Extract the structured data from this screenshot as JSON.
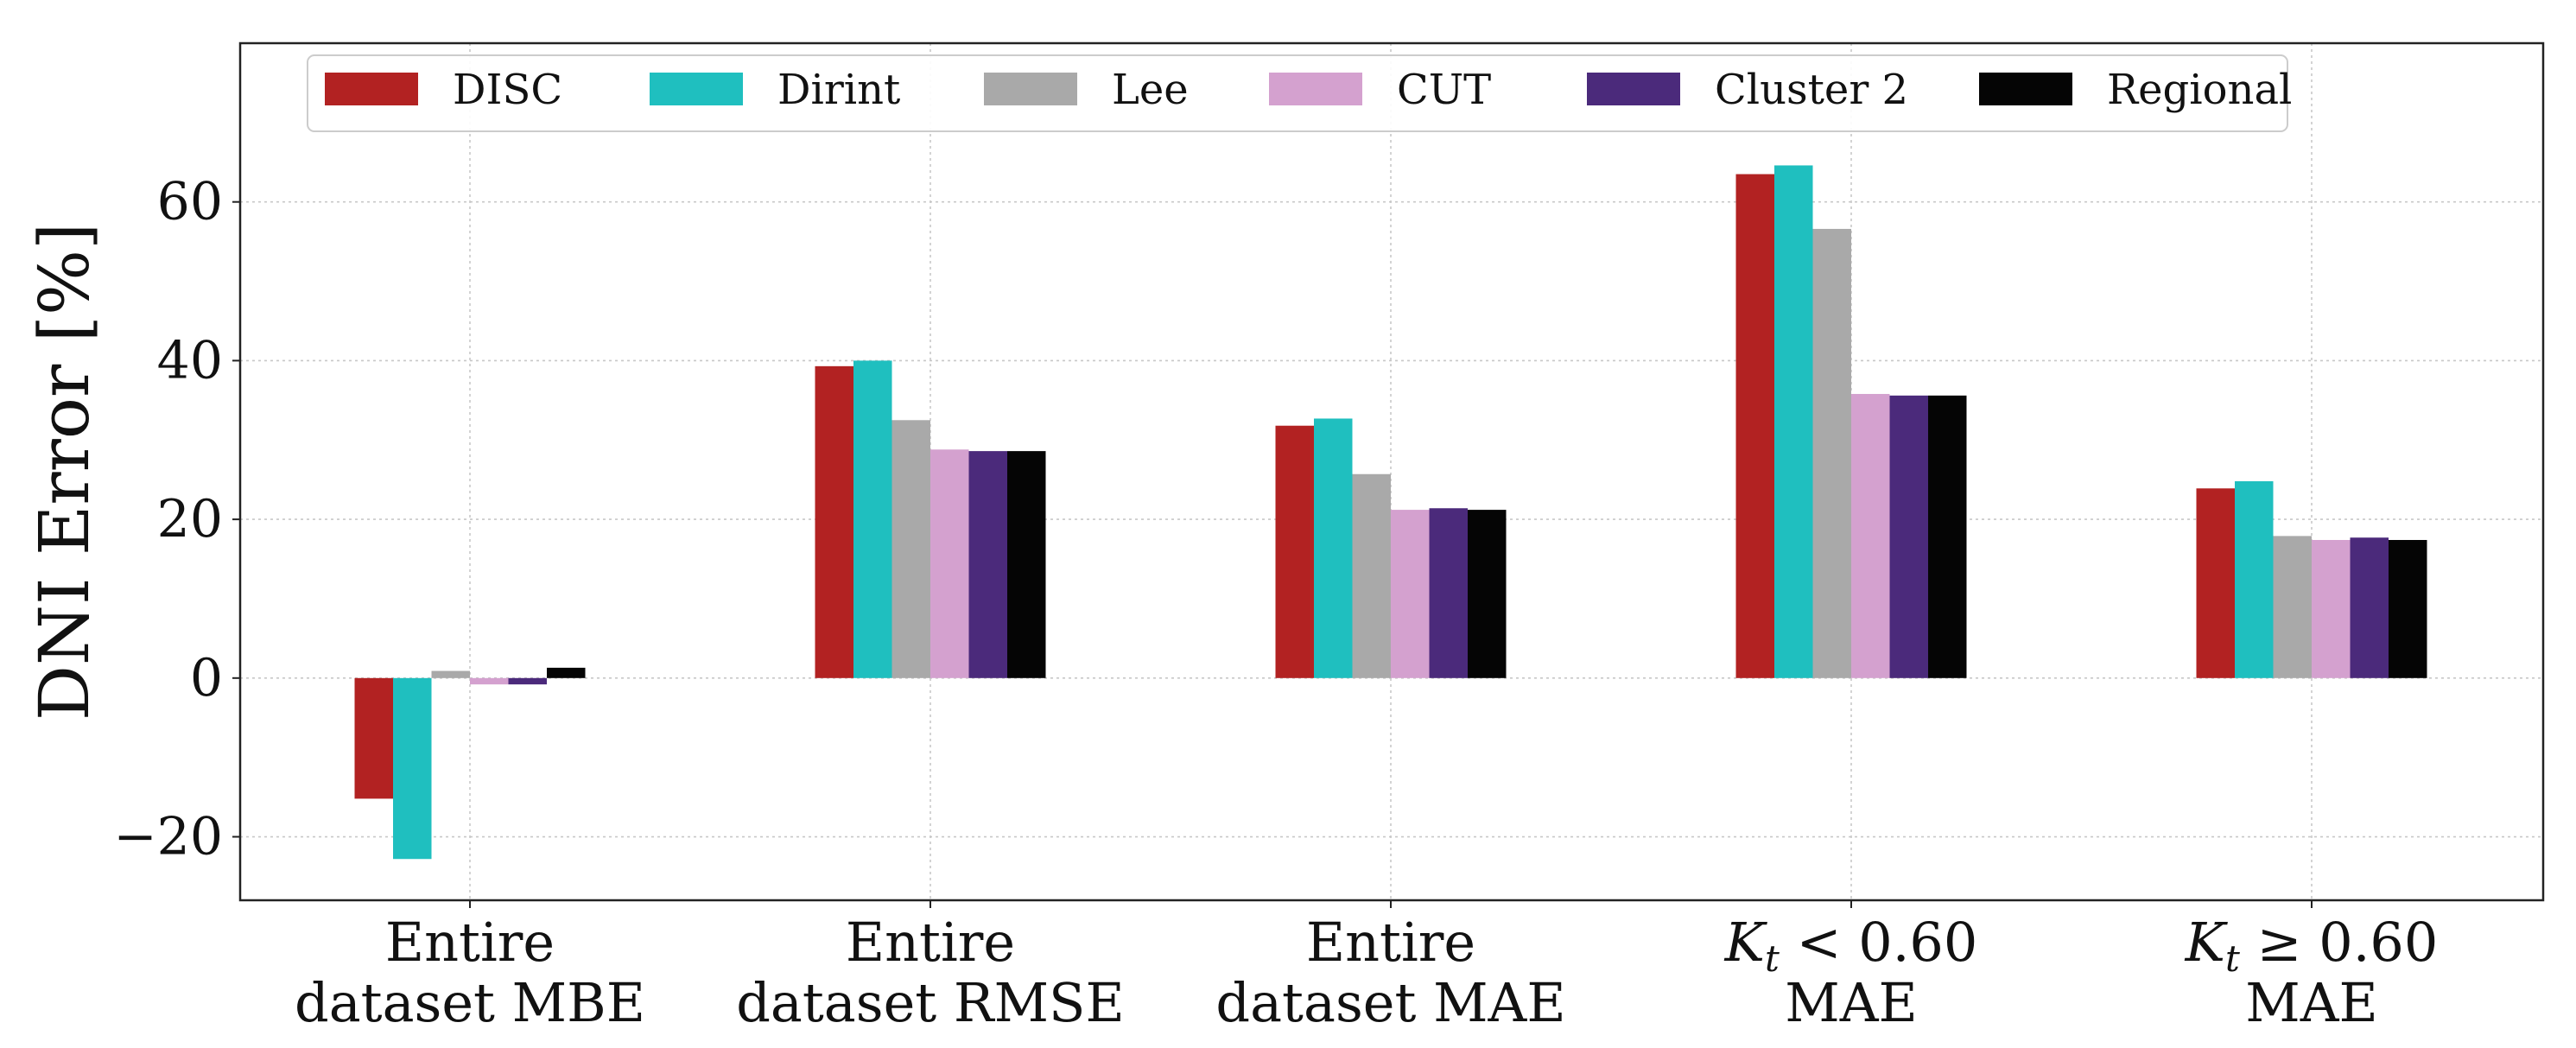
{
  "chart_data": {
    "type": "bar",
    "title": "",
    "xlabel": "",
    "ylabel": "DNI Error [%]",
    "ylim": [
      -28,
      80
    ],
    "yticks": [
      -20,
      0,
      20,
      40,
      60
    ],
    "ytick_labels": [
      "−20",
      "0",
      "20",
      "40",
      "60"
    ],
    "grid": true,
    "legend_position": "top",
    "categories": [
      [
        "Entire",
        "dataset MBE"
      ],
      [
        "Entire",
        "dataset RMSE"
      ],
      [
        "Entire",
        "dataset MAE"
      ],
      [
        "K_t < 0.60",
        "MAE"
      ],
      [
        "K_t ≥ 0.60",
        "MAE"
      ]
    ],
    "series": [
      {
        "name": "DISC",
        "color": "#b22222",
        "values": [
          -15.2,
          39.3,
          31.8,
          63.5,
          23.9
        ]
      },
      {
        "name": "Dirint",
        "color": "#1fbfbf",
        "values": [
          -22.8,
          40.0,
          32.7,
          64.6,
          24.8
        ]
      },
      {
        "name": "Lee",
        "color": "#a9a9a9",
        "values": [
          0.9,
          32.5,
          25.7,
          56.6,
          17.9
        ]
      },
      {
        "name": "CUT",
        "color": "#d4a1cf",
        "values": [
          -0.8,
          28.8,
          21.2,
          35.8,
          17.4
        ]
      },
      {
        "name": "Cluster 2",
        "color": "#4b2a7b",
        "values": [
          -0.8,
          28.6,
          21.4,
          35.6,
          17.7
        ]
      },
      {
        "name": "Regional",
        "color": "#050505",
        "values": [
          1.3,
          28.6,
          21.2,
          35.6,
          17.4
        ]
      }
    ]
  }
}
